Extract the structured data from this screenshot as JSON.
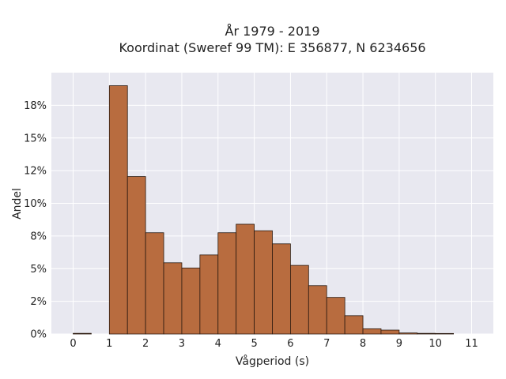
{
  "chart_data": {
    "type": "bar",
    "title_line1": "År 1979 - 2019",
    "title_line2": "Koordinat (Sweref 99 TM): E 356877, N 6234656",
    "xlabel": "Vågperiod (s)",
    "ylabel": "Andel",
    "xlim": [
      -0.6,
      11.6
    ],
    "ylim": [
      0,
      0.2
    ],
    "x_ticks": [
      0,
      1,
      2,
      3,
      4,
      5,
      6,
      7,
      8,
      9,
      10,
      11
    ],
    "y_ticks": [
      {
        "value": 0,
        "label": "0%"
      },
      {
        "value": 0.025,
        "label": "2%"
      },
      {
        "value": 0.05,
        "label": "5%"
      },
      {
        "value": 0.075,
        "label": "8%"
      },
      {
        "value": 0.1,
        "label": "10%"
      },
      {
        "value": 0.125,
        "label": "12%"
      },
      {
        "value": 0.15,
        "label": "15%"
      },
      {
        "value": 0.175,
        "label": "18%"
      }
    ],
    "bin_width": 0.5,
    "bins": [
      {
        "start": 0.0,
        "value": 0.0005
      },
      {
        "start": 1.0,
        "value": 0.19
      },
      {
        "start": 1.5,
        "value": 0.1205
      },
      {
        "start": 2.0,
        "value": 0.0775
      },
      {
        "start": 2.5,
        "value": 0.0545
      },
      {
        "start": 3.0,
        "value": 0.0505
      },
      {
        "start": 3.5,
        "value": 0.0605
      },
      {
        "start": 4.0,
        "value": 0.0775
      },
      {
        "start": 4.5,
        "value": 0.084
      },
      {
        "start": 5.0,
        "value": 0.079
      },
      {
        "start": 5.5,
        "value": 0.069
      },
      {
        "start": 6.0,
        "value": 0.0525
      },
      {
        "start": 6.5,
        "value": 0.037
      },
      {
        "start": 7.0,
        "value": 0.028
      },
      {
        "start": 7.5,
        "value": 0.014
      },
      {
        "start": 8.0,
        "value": 0.004
      },
      {
        "start": 8.5,
        "value": 0.003
      },
      {
        "start": 9.0,
        "value": 0.0008
      },
      {
        "start": 9.5,
        "value": 0.0005
      },
      {
        "start": 10.0,
        "value": 0.0004
      }
    ],
    "grid": true,
    "bar_color": "#b86c3f",
    "bar_edge_color": "#2b1a10",
    "plot_background": "#e8e8f0"
  }
}
